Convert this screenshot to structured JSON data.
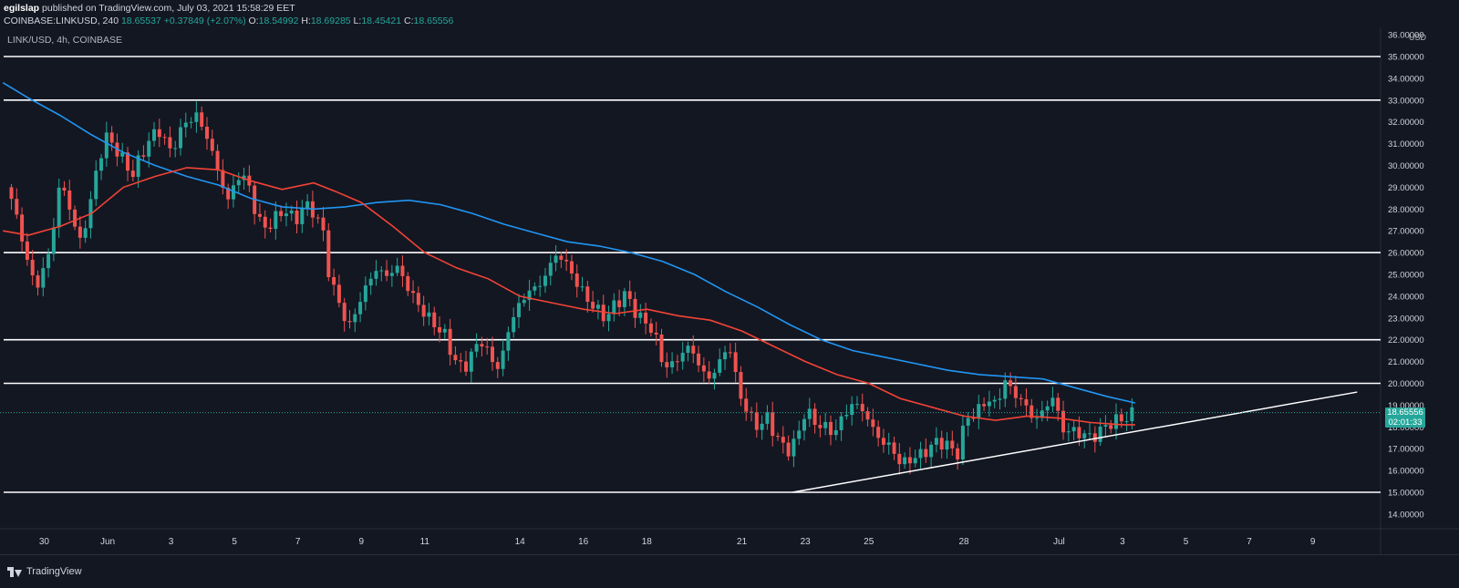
{
  "publish_line": {
    "author": "egilslap",
    "text": " published on TradingView.com, July 03, 2021 15:58:29 EET"
  },
  "ohlc": {
    "symbol": "COINBASE:LINKUSD, 240",
    "last": "18.65537",
    "change": "+0.37849 (+2.07%)",
    "o_label": "O:",
    "o": "18.54992",
    "h_label": "H:",
    "h": "18.69285",
    "l_label": "L:",
    "l": "18.45421",
    "c_label": "C:",
    "c": "18.65556"
  },
  "legend": "LINK/USD, 4h, COINBASE",
  "footer": {
    "brand": "TradingView"
  },
  "price_tag": {
    "price": "18.65556",
    "countdown": "02:01:33"
  },
  "colors": {
    "background": "#131722",
    "up": "#26a69a",
    "down": "#ef5350",
    "ma_fast": "#f44336",
    "ma_slow": "#2196f3",
    "lines": "#ffffff",
    "grid": "#1e222d"
  },
  "chart_data": {
    "type": "candlestick",
    "ylabel": "USD",
    "ylim": [
      13.0,
      36.0
    ],
    "y_ticks": [
      "14.00000",
      "15.00000",
      "16.00000",
      "17.00000",
      "18.00000",
      "19.00000",
      "20.00000",
      "21.00000",
      "22.00000",
      "23.00000",
      "24.00000",
      "25.00000",
      "26.00000",
      "27.00000",
      "28.00000",
      "29.00000",
      "30.00000",
      "31.00000",
      "32.00000",
      "33.00000",
      "34.00000",
      "35.00000",
      "36.00000"
    ],
    "x_ticks": [
      {
        "label": "30",
        "day": -2
      },
      {
        "label": "Jun",
        "day": 0
      },
      {
        "label": "3",
        "day": 2
      },
      {
        "label": "5",
        "day": 4
      },
      {
        "label": "7",
        "day": 6
      },
      {
        "label": "9",
        "day": 8
      },
      {
        "label": "11",
        "day": 10
      },
      {
        "label": "14",
        "day": 13
      },
      {
        "label": "16",
        "day": 15
      },
      {
        "label": "18",
        "day": 17
      },
      {
        "label": "21",
        "day": 20
      },
      {
        "label": "23",
        "day": 22
      },
      {
        "label": "25",
        "day": 24
      },
      {
        "label": "28",
        "day": 27
      },
      {
        "label": "Jul",
        "day": 30
      },
      {
        "label": "3",
        "day": 32
      },
      {
        "label": "5",
        "day": 34
      },
      {
        "label": "7",
        "day": 36
      },
      {
        "label": "9",
        "day": 38
      }
    ],
    "horizontal_levels": [
      15,
      20,
      22,
      26,
      33,
      35
    ],
    "trendline": [
      [
        21.6,
        15.0
      ],
      [
        39.4,
        19.6
      ]
    ],
    "candle_path": [
      [
        -3.2,
        29.0
      ],
      [
        -2.8,
        27.4
      ],
      [
        -2.5,
        25.3
      ],
      [
        -2.2,
        24.5
      ],
      [
        -1.8,
        26.2
      ],
      [
        -1.5,
        29.3
      ],
      [
        -1.2,
        28.1
      ],
      [
        -0.9,
        26.4
      ],
      [
        -0.6,
        27.8
      ],
      [
        -0.3,
        30.2
      ],
      [
        0.0,
        31.4
      ],
      [
        0.4,
        30.4
      ],
      [
        0.8,
        29.6
      ],
      [
        1.2,
        30.9
      ],
      [
        1.6,
        31.7
      ],
      [
        2.0,
        30.6
      ],
      [
        2.4,
        31.9
      ],
      [
        2.8,
        32.3
      ],
      [
        3.2,
        31.1
      ],
      [
        3.5,
        29.6
      ],
      [
        3.8,
        28.4
      ],
      [
        4.1,
        29.5
      ],
      [
        4.4,
        29.4
      ],
      [
        4.7,
        27.6
      ],
      [
        5.0,
        27.1
      ],
      [
        5.3,
        27.6
      ],
      [
        5.6,
        28.0
      ],
      [
        5.9,
        27.4
      ],
      [
        6.2,
        28.2
      ],
      [
        6.5,
        27.9
      ],
      [
        6.8,
        26.9
      ],
      [
        7.0,
        24.8
      ],
      [
        7.3,
        23.7
      ],
      [
        7.6,
        22.5
      ],
      [
        7.9,
        23.6
      ],
      [
        8.2,
        24.6
      ],
      [
        8.5,
        25.3
      ],
      [
        8.8,
        24.9
      ],
      [
        9.1,
        25.4
      ],
      [
        9.4,
        24.6
      ],
      [
        9.7,
        23.8
      ],
      [
        10.0,
        23.2
      ],
      [
        10.3,
        22.7
      ],
      [
        10.6,
        22.3
      ],
      [
        10.9,
        21.2
      ],
      [
        11.2,
        20.6
      ],
      [
        11.5,
        21.4
      ],
      [
        11.8,
        22.0
      ],
      [
        12.1,
        21.0
      ],
      [
        12.4,
        20.8
      ],
      [
        12.7,
        22.9
      ],
      [
        13.0,
        23.6
      ],
      [
        13.3,
        24.3
      ],
      [
        13.6,
        24.4
      ],
      [
        13.9,
        25.3
      ],
      [
        14.2,
        26.0
      ],
      [
        14.5,
        25.4
      ],
      [
        14.8,
        24.6
      ],
      [
        15.1,
        23.9
      ],
      [
        15.4,
        23.4
      ],
      [
        15.7,
        23.0
      ],
      [
        16.0,
        23.6
      ],
      [
        16.3,
        24.1
      ],
      [
        16.6,
        23.4
      ],
      [
        16.9,
        22.8
      ],
      [
        17.2,
        22.5
      ],
      [
        17.5,
        20.9
      ],
      [
        17.8,
        20.8
      ],
      [
        18.1,
        21.4
      ],
      [
        18.4,
        21.7
      ],
      [
        18.7,
        20.6
      ],
      [
        19.0,
        20.2
      ],
      [
        19.3,
        21.0
      ],
      [
        19.6,
        21.8
      ],
      [
        19.9,
        19.6
      ],
      [
        20.2,
        18.6
      ],
      [
        20.5,
        18.0
      ],
      [
        20.8,
        18.4
      ],
      [
        21.1,
        17.5
      ],
      [
        21.4,
        16.9
      ],
      [
        21.7,
        17.3
      ],
      [
        22.0,
        18.8
      ],
      [
        22.3,
        18.2
      ],
      [
        22.6,
        18.0
      ],
      [
        22.9,
        17.7
      ],
      [
        23.2,
        18.5
      ],
      [
        23.5,
        19.1
      ],
      [
        23.8,
        18.8
      ],
      [
        24.1,
        18.0
      ],
      [
        24.4,
        17.3
      ],
      [
        24.7,
        17.1
      ],
      [
        25.0,
        16.3
      ],
      [
        25.3,
        16.5
      ],
      [
        25.6,
        16.7
      ],
      [
        25.9,
        17.0
      ],
      [
        26.2,
        17.4
      ],
      [
        26.5,
        17.1
      ],
      [
        26.8,
        16.8
      ],
      [
        27.1,
        18.5
      ],
      [
        27.4,
        18.6
      ],
      [
        27.7,
        19.3
      ],
      [
        28.0,
        19.0
      ],
      [
        28.3,
        20.1
      ],
      [
        28.6,
        19.5
      ],
      [
        28.9,
        19.1
      ],
      [
        29.2,
        18.3
      ],
      [
        29.5,
        18.7
      ],
      [
        29.8,
        19.4
      ],
      [
        30.1,
        17.9
      ],
      [
        30.4,
        17.8
      ],
      [
        30.7,
        17.7
      ],
      [
        31.0,
        17.5
      ],
      [
        31.3,
        17.8
      ],
      [
        31.6,
        18.2
      ],
      [
        31.9,
        18.3
      ],
      [
        32.2,
        18.5
      ],
      [
        32.4,
        18.65
      ]
    ],
    "ma_fast": [
      [
        -3.3,
        27.0
      ],
      [
        -2.5,
        26.8
      ],
      [
        -1.5,
        27.2
      ],
      [
        -0.5,
        27.8
      ],
      [
        0.5,
        29.0
      ],
      [
        1.5,
        29.5
      ],
      [
        2.5,
        29.9
      ],
      [
        3.5,
        29.8
      ],
      [
        4.5,
        29.3
      ],
      [
        5.5,
        28.9
      ],
      [
        6.5,
        29.2
      ],
      [
        7.2,
        28.8
      ],
      [
        8.0,
        28.3
      ],
      [
        9.0,
        27.2
      ],
      [
        10.0,
        26.0
      ],
      [
        11.0,
        25.3
      ],
      [
        12.0,
        24.8
      ],
      [
        13.0,
        24.0
      ],
      [
        14.0,
        23.7
      ],
      [
        15.0,
        23.4
      ],
      [
        16.0,
        23.2
      ],
      [
        17.0,
        23.4
      ],
      [
        18.0,
        23.1
      ],
      [
        19.0,
        22.9
      ],
      [
        20.0,
        22.4
      ],
      [
        21.0,
        21.7
      ],
      [
        22.0,
        21.0
      ],
      [
        23.0,
        20.4
      ],
      [
        24.0,
        20.0
      ],
      [
        25.0,
        19.3
      ],
      [
        26.0,
        18.9
      ],
      [
        27.0,
        18.5
      ],
      [
        28.0,
        18.3
      ],
      [
        29.0,
        18.5
      ],
      [
        30.0,
        18.4
      ],
      [
        31.0,
        18.2
      ],
      [
        32.0,
        18.1
      ],
      [
        32.4,
        18.1
      ]
    ],
    "ma_slow": [
      [
        -3.3,
        33.8
      ],
      [
        -2.5,
        33.1
      ],
      [
        -1.5,
        32.3
      ],
      [
        -0.5,
        31.4
      ],
      [
        0.5,
        30.6
      ],
      [
        1.5,
        30.0
      ],
      [
        2.5,
        29.5
      ],
      [
        3.5,
        29.1
      ],
      [
        4.5,
        28.5
      ],
      [
        5.5,
        28.1
      ],
      [
        6.5,
        28.0
      ],
      [
        7.5,
        28.1
      ],
      [
        8.5,
        28.3
      ],
      [
        9.5,
        28.4
      ],
      [
        10.5,
        28.2
      ],
      [
        11.5,
        27.8
      ],
      [
        12.5,
        27.3
      ],
      [
        13.5,
        26.9
      ],
      [
        14.5,
        26.5
      ],
      [
        15.5,
        26.3
      ],
      [
        16.5,
        26.0
      ],
      [
        17.5,
        25.6
      ],
      [
        18.5,
        25.0
      ],
      [
        19.5,
        24.2
      ],
      [
        20.5,
        23.5
      ],
      [
        21.5,
        22.7
      ],
      [
        22.5,
        22.0
      ],
      [
        23.5,
        21.5
      ],
      [
        24.5,
        21.2
      ],
      [
        25.5,
        20.9
      ],
      [
        26.5,
        20.6
      ],
      [
        27.5,
        20.4
      ],
      [
        28.5,
        20.3
      ],
      [
        29.5,
        20.2
      ],
      [
        30.5,
        19.8
      ],
      [
        31.5,
        19.4
      ],
      [
        32.4,
        19.1
      ]
    ]
  }
}
